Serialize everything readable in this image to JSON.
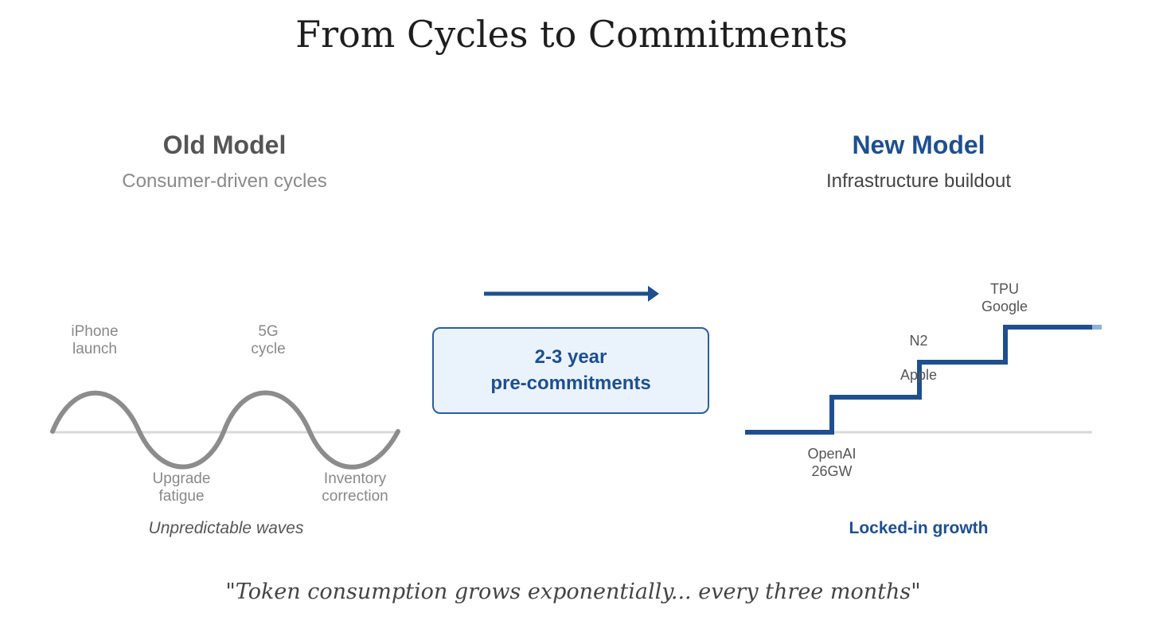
{
  "title": "From Cycles to Commitments",
  "old_model": {
    "title": "Old Model",
    "subtitle": "Consumer-driven cycles",
    "peak_labels": [
      {
        "line1": "iPhone",
        "line2": "launch"
      },
      {
        "line1": "5G",
        "line2": "cycle"
      }
    ],
    "trough_labels": [
      {
        "line1": "Upgrade",
        "line2": "fatigue"
      },
      {
        "line1": "Inventory",
        "line2": "correction"
      }
    ],
    "caption": "Unpredictable waves"
  },
  "transition": {
    "line1": "2-3 year",
    "line2": "pre-commitments"
  },
  "new_model": {
    "title": "New Model",
    "subtitle": "Infrastructure buildout",
    "step_labels": {
      "openai": {
        "line1": "OpenAI",
        "line2": "26GW"
      },
      "apple": "Apple",
      "n2": "N2",
      "google": {
        "line1": "TPU",
        "line2": "Google"
      }
    },
    "caption": "Locked-in growth"
  },
  "quote": "\"Token consumption grows exponentially... every three months\"",
  "colors": {
    "accent": "#1e4f8f",
    "wave": "#8c8c8c",
    "baseline": "#d9d9d9",
    "box_fill": "#eaf3fc"
  },
  "icons": {
    "transition_arrow": "arrow-right-icon"
  }
}
